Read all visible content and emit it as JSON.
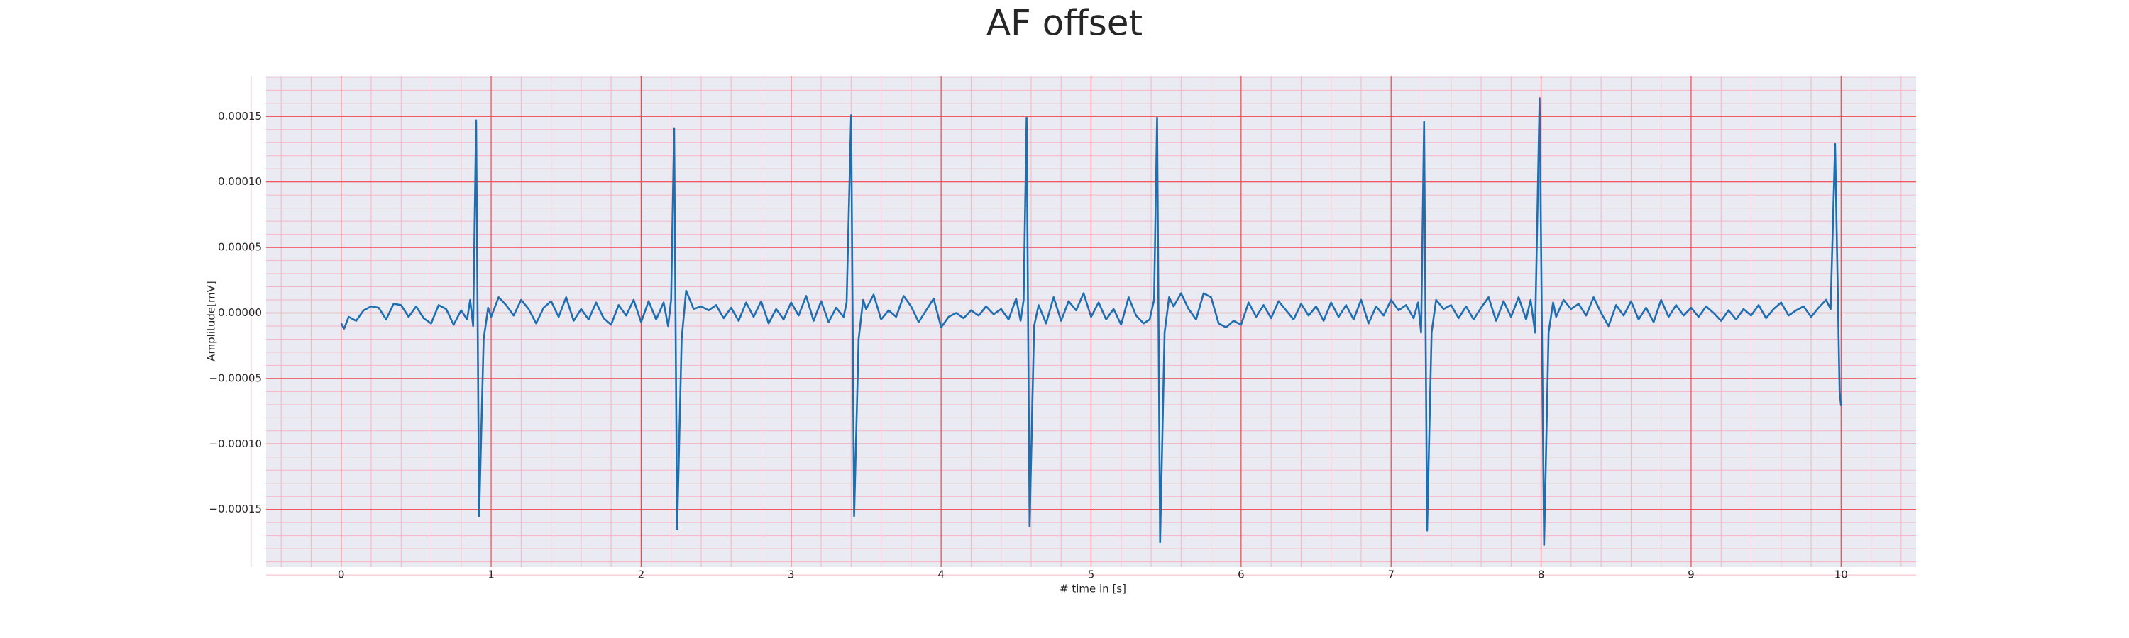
{
  "chart_data": {
    "type": "line",
    "title": "AF offset",
    "xlabel": "# time in [s]",
    "ylabel": "Amplitude[mV]",
    "color": "#1f6fb0",
    "grid": true,
    "minor_grid": true,
    "xlim": [
      -0.5,
      10.5
    ],
    "xticks": [
      0,
      1,
      2,
      3,
      4,
      5,
      6,
      7,
      8,
      9,
      10
    ],
    "ylim": [
      -0.000194,
      0.000181
    ],
    "yticks": [
      {
        "value": -0.00015,
        "label": "−0.00015"
      },
      {
        "value": -0.0001,
        "label": "−0.00010"
      },
      {
        "value": -5e-05,
        "label": "−0.00005"
      },
      {
        "value": 0,
        "label": "0.00000"
      },
      {
        "value": 5e-05,
        "label": "0.00005"
      },
      {
        "value": 0.0001,
        "label": "0.00010"
      },
      {
        "value": 0.00015,
        "label": "0.00015"
      }
    ],
    "x": [
      0,
      0.02,
      0.05,
      0.1,
      0.15,
      0.2,
      0.25,
      0.3,
      0.35,
      0.4,
      0.45,
      0.5,
      0.55,
      0.6,
      0.65,
      0.7,
      0.75,
      0.8,
      0.84,
      0.86,
      0.88,
      0.9,
      0.92,
      0.95,
      0.98,
      1.0,
      1.05,
      1.1,
      1.15,
      1.2,
      1.25,
      1.3,
      1.35,
      1.4,
      1.45,
      1.5,
      1.55,
      1.6,
      1.65,
      1.7,
      1.75,
      1.8,
      1.85,
      1.9,
      1.95,
      2.0,
      2.05,
      2.1,
      2.15,
      2.18,
      2.2,
      2.22,
      2.24,
      2.27,
      2.3,
      2.35,
      2.4,
      2.45,
      2.5,
      2.55,
      2.6,
      2.65,
      2.7,
      2.75,
      2.8,
      2.85,
      2.9,
      2.95,
      3.0,
      3.05,
      3.1,
      3.15,
      3.2,
      3.25,
      3.3,
      3.35,
      3.37,
      3.4,
      3.42,
      3.45,
      3.48,
      3.5,
      3.55,
      3.6,
      3.65,
      3.7,
      3.75,
      3.8,
      3.85,
      3.9,
      3.95,
      4.0,
      4.05,
      4.1,
      4.15,
      4.2,
      4.25,
      4.3,
      4.35,
      4.4,
      4.45,
      4.5,
      4.53,
      4.55,
      4.57,
      4.59,
      4.62,
      4.65,
      4.7,
      4.75,
      4.8,
      4.85,
      4.9,
      4.95,
      5.0,
      5.05,
      5.1,
      5.15,
      5.2,
      5.25,
      5.3,
      5.35,
      5.39,
      5.42,
      5.44,
      5.46,
      5.49,
      5.52,
      5.55,
      5.6,
      5.65,
      5.7,
      5.75,
      5.8,
      5.85,
      5.9,
      5.95,
      6.0,
      6.05,
      6.1,
      6.15,
      6.2,
      6.25,
      6.3,
      6.35,
      6.4,
      6.45,
      6.5,
      6.55,
      6.6,
      6.65,
      6.7,
      6.75,
      6.8,
      6.85,
      6.9,
      6.95,
      7.0,
      7.05,
      7.1,
      7.15,
      7.18,
      7.2,
      7.22,
      7.24,
      7.27,
      7.3,
      7.35,
      7.4,
      7.45,
      7.5,
      7.55,
      7.6,
      7.65,
      7.7,
      7.75,
      7.8,
      7.85,
      7.9,
      7.93,
      7.96,
      7.99,
      8.02,
      8.05,
      8.08,
      8.1,
      8.15,
      8.2,
      8.25,
      8.3,
      8.35,
      8.4,
      8.45,
      8.5,
      8.55,
      8.6,
      8.65,
      8.7,
      8.75,
      8.8,
      8.85,
      8.9,
      8.95,
      9.0,
      9.05,
      9.1,
      9.15,
      9.2,
      9.25,
      9.3,
      9.35,
      9.4,
      9.45,
      9.5,
      9.55,
      9.6,
      9.65,
      9.7,
      9.75,
      9.8,
      9.85,
      9.9,
      9.93,
      9.96,
      9.99,
      10.0
    ],
    "values": [
      -8e-06,
      -1.2e-05,
      -3e-06,
      -6e-06,
      2e-06,
      5e-06,
      4e-06,
      -5e-06,
      7e-06,
      6e-06,
      -3e-06,
      5e-06,
      -4e-06,
      -8e-06,
      6e-06,
      3e-06,
      -9e-06,
      2e-06,
      -5e-06,
      1e-05,
      -1e-05,
      0.000147,
      -0.000155,
      -2e-05,
      4e-06,
      -3e-06,
      1.2e-05,
      6e-06,
      -2e-06,
      1e-05,
      3e-06,
      -8e-06,
      4e-06,
      9e-06,
      -3e-06,
      1.2e-05,
      -6e-06,
      3e-06,
      -5e-06,
      8e-06,
      -4e-06,
      -9e-06,
      6e-06,
      -2e-06,
      1e-05,
      -7e-06,
      9e-06,
      -5e-06,
      8e-06,
      -1e-05,
      1e-05,
      0.000141,
      -0.000165,
      -2e-05,
      1.7e-05,
      3e-06,
      5e-06,
      2e-06,
      6e-06,
      -4e-06,
      4e-06,
      -6e-06,
      8e-06,
      -3e-06,
      9e-06,
      -8e-06,
      3e-06,
      -5e-06,
      8e-06,
      -2e-06,
      1.3e-05,
      -6e-06,
      9e-06,
      -7e-06,
      4e-06,
      -3e-06,
      8e-06,
      0.000151,
      -0.000155,
      -2e-05,
      1e-05,
      3e-06,
      1.4e-05,
      -5e-06,
      2e-06,
      -3e-06,
      1.3e-05,
      5e-06,
      -7e-06,
      2e-06,
      1.1e-05,
      -1.1e-05,
      -3e-06,
      0,
      -4e-06,
      2e-06,
      -2e-06,
      5e-06,
      -1e-06,
      3e-06,
      -5e-06,
      1.1e-05,
      -6e-06,
      1e-05,
      0.000149,
      -0.000163,
      -1e-05,
      6e-06,
      -8e-06,
      1.2e-05,
      -6e-06,
      9e-06,
      2e-06,
      1.5e-05,
      -3e-06,
      8e-06,
      -5e-06,
      3e-06,
      -9e-06,
      1.2e-05,
      -2e-06,
      -8e-06,
      -5e-06,
      1e-05,
      0.000149,
      -0.000175,
      -1.5e-05,
      1.2e-05,
      5e-06,
      1.5e-05,
      3e-06,
      -5e-06,
      1.5e-05,
      1.2e-05,
      -8e-06,
      -1.1e-05,
      -6e-06,
      -9e-06,
      8e-06,
      -3e-06,
      6e-06,
      -4e-06,
      9e-06,
      2e-06,
      -5e-06,
      7e-06,
      -2e-06,
      5e-06,
      -6e-06,
      8e-06,
      -3e-06,
      6e-06,
      -5e-06,
      1e-05,
      -8e-06,
      5e-06,
      -2e-06,
      1e-05,
      2e-06,
      6e-06,
      -4e-06,
      8e-06,
      -1.5e-05,
      0.000146,
      -0.000166,
      -1.5e-05,
      1e-05,
      3e-06,
      6e-06,
      -4e-06,
      5e-06,
      -5e-06,
      4e-06,
      1.2e-05,
      -6e-06,
      9e-06,
      -3e-06,
      1.2e-05,
      -5e-06,
      1e-05,
      -1.5e-05,
      0.000164,
      -0.000177,
      -1.5e-05,
      8e-06,
      -3e-06,
      1e-05,
      3e-06,
      7e-06,
      -2e-06,
      1.2e-05,
      0,
      -1e-05,
      6e-06,
      -2e-06,
      9e-06,
      -5e-06,
      4e-06,
      -7e-06,
      1e-05,
      -3e-06,
      6e-06,
      -2e-06,
      4e-06,
      -3e-06,
      5e-06,
      0,
      -6e-06,
      2e-06,
      -5e-06,
      3e-06,
      -2e-06,
      6e-06,
      -4e-06,
      3e-06,
      8e-06,
      -2e-06,
      2e-06,
      5e-06,
      -3e-06,
      4e-06,
      1e-05,
      3e-06,
      0.000129,
      -6e-05,
      -7.1e-05
    ]
  }
}
